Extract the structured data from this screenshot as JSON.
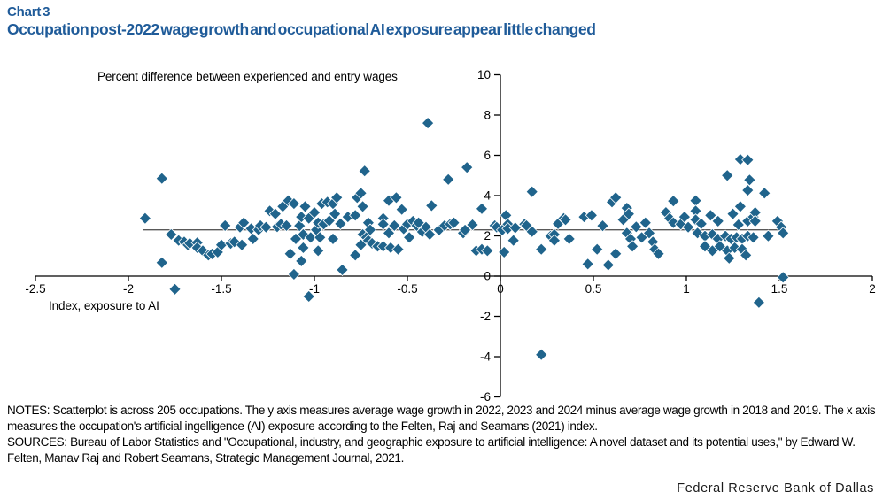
{
  "header": {
    "chart_label": "Chart 3",
    "title": "Occupation post-2022 wage growth and occupational AI exposure appear little changed",
    "title_color": "#1F5B99"
  },
  "chart_data": {
    "type": "scatter",
    "y_axis_title": "Percent difference between experienced and entry wages",
    "x_axis_title": "Index,  exposure to AI",
    "xlim": [
      -2.5,
      2
    ],
    "ylim": [
      -6,
      10
    ],
    "x_ticks": [
      -2.5,
      -2,
      -1.5,
      -1,
      -0.5,
      0,
      0.5,
      1,
      1.5,
      2
    ],
    "y_ticks": [
      10,
      8,
      6,
      4,
      2,
      0,
      -2,
      -4,
      -6
    ],
    "grid": false,
    "legend": "none",
    "marker_color": "#20648C",
    "marker_shape": "diamond",
    "mean_line": {
      "y": 2.3,
      "x_start": -1.92,
      "x_end": 1.52,
      "color": "#595959"
    },
    "points": [
      [
        -1.91,
        2.87
      ],
      [
        -1.82,
        4.85
      ],
      [
        -1.82,
        0.67
      ],
      [
        -1.77,
        2.07
      ],
      [
        -1.75,
        -0.65
      ],
      [
        -1.73,
        1.77
      ],
      [
        -1.7,
        1.7
      ],
      [
        -1.68,
        1.55
      ],
      [
        -1.67,
        1.63
      ],
      [
        -1.63,
        1.66
      ],
      [
        -1.63,
        1.41
      ],
      [
        -1.6,
        1.26
      ],
      [
        -1.57,
        1.04
      ],
      [
        -1.55,
        1.1
      ],
      [
        -1.52,
        1.19
      ],
      [
        -1.5,
        1.55
      ],
      [
        -1.48,
        2.51
      ],
      [
        -1.45,
        1.62
      ],
      [
        -1.43,
        1.7
      ],
      [
        -1.4,
        2.43
      ],
      [
        -1.39,
        1.55
      ],
      [
        -1.38,
        2.65
      ],
      [
        -1.34,
        2.36
      ],
      [
        -1.33,
        1.85
      ],
      [
        -1.3,
        2.3
      ],
      [
        -1.29,
        2.51
      ],
      [
        -1.26,
        2.43
      ],
      [
        -1.24,
        3.24
      ],
      [
        -1.21,
        3.09
      ],
      [
        -1.2,
        2.45
      ],
      [
        -1.18,
        2.58
      ],
      [
        -1.17,
        3.46
      ],
      [
        -1.15,
        2.51
      ],
      [
        -1.14,
        3.75
      ],
      [
        -1.13,
        1.11
      ],
      [
        -1.11,
        3.6
      ],
      [
        -1.11,
        0.09
      ],
      [
        -1.1,
        1.85
      ],
      [
        -1.08,
        2.5
      ],
      [
        -1.07,
        2.94
      ],
      [
        -1.07,
        0.75
      ],
      [
        -1.06,
        2.07
      ],
      [
        -1.06,
        1.41
      ],
      [
        -1.05,
        3.46
      ],
      [
        -1.03,
        2.87
      ],
      [
        -1.03,
        -1.01
      ],
      [
        -1.02,
        1.92
      ],
      [
        -1.0,
        3.16
      ],
      [
        -0.99,
        2.3
      ],
      [
        -0.98,
        2.65
      ],
      [
        -0.98,
        1.26
      ],
      [
        -0.97,
        1.92
      ],
      [
        -0.96,
        3.6
      ],
      [
        -0.95,
        2.58
      ],
      [
        -0.93,
        3.68
      ],
      [
        -0.92,
        2.75
      ],
      [
        -0.9,
        3.6
      ],
      [
        -0.9,
        1.85
      ],
      [
        -0.89,
        3.09
      ],
      [
        -0.88,
        3.9
      ],
      [
        -0.86,
        2.6
      ],
      [
        -0.85,
        0.31
      ],
      [
        -0.82,
        2.94
      ],
      [
        -0.78,
        3.02
      ],
      [
        -0.78,
        1.04
      ],
      [
        -0.77,
        3.9
      ],
      [
        -0.75,
        4.12
      ],
      [
        -0.75,
        1.55
      ],
      [
        -0.74,
        3.46
      ],
      [
        -0.74,
        2.07
      ],
      [
        -0.73,
        5.22
      ],
      [
        -0.72,
        1.92
      ],
      [
        -0.71,
        2.65
      ],
      [
        -0.71,
        1.77
      ],
      [
        -0.7,
        2.3
      ],
      [
        -0.69,
        1.63
      ],
      [
        -0.66,
        1.48
      ],
      [
        -0.63,
        2.87
      ],
      [
        -0.63,
        2.58
      ],
      [
        -0.63,
        1.48
      ],
      [
        -0.6,
        3.75
      ],
      [
        -0.6,
        2.14
      ],
      [
        -0.59,
        1.41
      ],
      [
        -0.57,
        2.51
      ],
      [
        -0.56,
        3.9
      ],
      [
        -0.55,
        1.33
      ],
      [
        -0.53,
        3.31
      ],
      [
        -0.52,
        2.35
      ],
      [
        -0.5,
        2.58
      ],
      [
        -0.49,
        1.92
      ],
      [
        -0.47,
        2.73
      ],
      [
        -0.45,
        2.51
      ],
      [
        -0.44,
        2.65
      ],
      [
        -0.42,
        2.2
      ],
      [
        -0.4,
        2.43
      ],
      [
        -0.39,
        7.6
      ],
      [
        -0.38,
        2.07
      ],
      [
        -0.37,
        3.5
      ],
      [
        -0.33,
        2.29
      ],
      [
        -0.3,
        2.51
      ],
      [
        -0.28,
        4.8
      ],
      [
        -0.27,
        2.58
      ],
      [
        -0.25,
        2.65
      ],
      [
        -0.2,
        2.14
      ],
      [
        -0.19,
        2.29
      ],
      [
        -0.18,
        5.4
      ],
      [
        -0.15,
        2.55
      ],
      [
        -0.13,
        1.26
      ],
      [
        -0.1,
        3.35
      ],
      [
        -0.1,
        1.33
      ],
      [
        -0.07,
        1.26
      ],
      [
        -0.03,
        2.51
      ],
      [
        -0.02,
        2.43
      ],
      [
        0.01,
        2.29
      ],
      [
        0.02,
        1.19
      ],
      [
        0.03,
        3.02
      ],
      [
        0.04,
        2.58
      ],
      [
        0.04,
        2.36
      ],
      [
        0.07,
        1.77
      ],
      [
        0.08,
        2.4
      ],
      [
        0.13,
        2.58
      ],
      [
        0.14,
        2.51
      ],
      [
        0.17,
        4.19
      ],
      [
        0.17,
        2.21
      ],
      [
        0.22,
        1.33
      ],
      [
        0.22,
        -3.9
      ],
      [
        0.27,
        1.99
      ],
      [
        0.29,
        2.07
      ],
      [
        0.29,
        1.77
      ],
      [
        0.31,
        2.6
      ],
      [
        0.34,
        2.87
      ],
      [
        0.35,
        2.8
      ],
      [
        0.37,
        1.85
      ],
      [
        0.45,
        2.94
      ],
      [
        0.47,
        0.6
      ],
      [
        0.49,
        3.02
      ],
      [
        0.52,
        1.33
      ],
      [
        0.55,
        2.5
      ],
      [
        0.58,
        0.55
      ],
      [
        0.6,
        3.68
      ],
      [
        0.62,
        3.9
      ],
      [
        0.62,
        1.11
      ],
      [
        0.66,
        2.8
      ],
      [
        0.68,
        3.38
      ],
      [
        0.68,
        2.14
      ],
      [
        0.69,
        3.09
      ],
      [
        0.7,
        1.85
      ],
      [
        0.71,
        1.48
      ],
      [
        0.73,
        2.45
      ],
      [
        0.76,
        1.92
      ],
      [
        0.78,
        2.65
      ],
      [
        0.8,
        2.14
      ],
      [
        0.82,
        1.7
      ],
      [
        0.83,
        1.33
      ],
      [
        0.85,
        1.11
      ],
      [
        0.89,
        3.16
      ],
      [
        0.91,
        2.87
      ],
      [
        0.93,
        3.73
      ],
      [
        0.93,
        2.65
      ],
      [
        0.97,
        2.58
      ],
      [
        0.99,
        2.94
      ],
      [
        1.01,
        2.43
      ],
      [
        1.05,
        3.75
      ],
      [
        1.05,
        3.24
      ],
      [
        1.05,
        2.8
      ],
      [
        1.06,
        2.14
      ],
      [
        1.08,
        2.6
      ],
      [
        1.1,
        1.99
      ],
      [
        1.1,
        1.48
      ],
      [
        1.13,
        3.02
      ],
      [
        1.14,
        2.07
      ],
      [
        1.14,
        1.26
      ],
      [
        1.17,
        2.73
      ],
      [
        1.17,
        1.85
      ],
      [
        1.18,
        1.48
      ],
      [
        1.21,
        1.99
      ],
      [
        1.22,
        5.0
      ],
      [
        1.22,
        1.26
      ],
      [
        1.23,
        0.89
      ],
      [
        1.24,
        1.85
      ],
      [
        1.25,
        3.09
      ],
      [
        1.26,
        1.41
      ],
      [
        1.27,
        1.92
      ],
      [
        1.28,
        2.55
      ],
      [
        1.29,
        5.8
      ],
      [
        1.29,
        3.46
      ],
      [
        1.3,
        1.85
      ],
      [
        1.3,
        1.33
      ],
      [
        1.32,
        1.04
      ],
      [
        1.33,
        5.77
      ],
      [
        1.33,
        4.26
      ],
      [
        1.33,
        2.73
      ],
      [
        1.33,
        1.99
      ],
      [
        1.34,
        4.78
      ],
      [
        1.36,
        2.94
      ],
      [
        1.36,
        1.92
      ],
      [
        1.37,
        3.16
      ],
      [
        1.37,
        2.73
      ],
      [
        1.39,
        -1.31
      ],
      [
        1.42,
        4.12
      ],
      [
        1.44,
        1.99
      ],
      [
        1.49,
        2.73
      ],
      [
        1.51,
        2.43
      ],
      [
        1.52,
        2.14
      ],
      [
        1.52,
        -0.06
      ]
    ]
  },
  "notes": {
    "notes_text": "NOTES: Scatterplot is across 205 occupations. The y axis measures average wage growth in 2022, 2023 and 2024 minus average wage growth in 2018 and 2019. The x axis measures the occupation's artificial ingelligence (AI) exposure according to the Felten, Raj and Seamans (2021) index.",
    "sources_text": "SOURCES: Bureau of Labor Statistics and \"Occupational, industry, and geographic exposure to artificial intelligence: A novel dataset and its potential uses,\" by Edward W. Felten, Manav Raj and Robert Seamans, Strategic Management Journal, 2021."
  },
  "footer": {
    "organization": "Federal Reserve Bank of Dallas"
  }
}
